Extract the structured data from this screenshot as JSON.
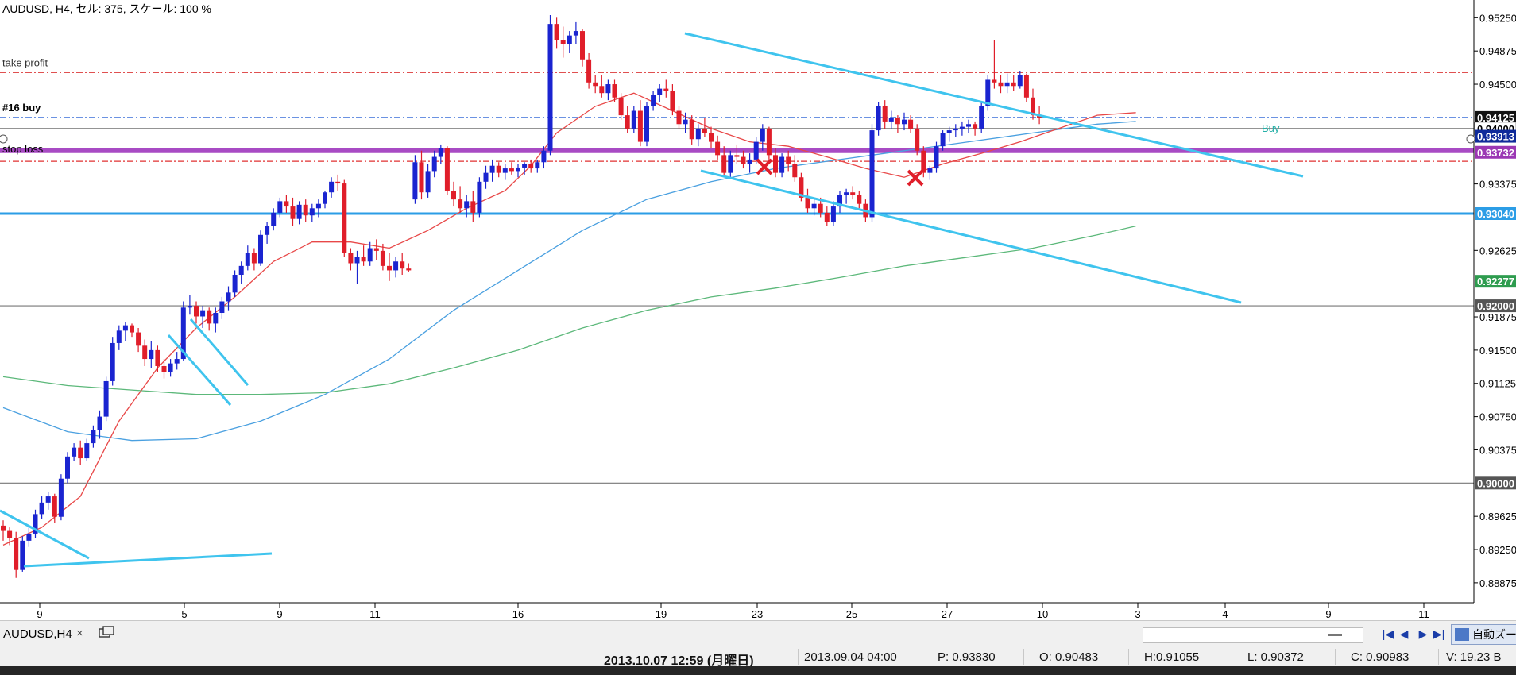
{
  "window": {
    "title": "AUDUSD, H4, セル: 375, スケール: 100 %"
  },
  "chart_data": {
    "type": "candlestick",
    "symbol": "AUDUSD",
    "timeframe": "H4",
    "y_ticks": [
      "0.95250",
      "0.94875",
      "0.94500",
      "0.93375",
      "0.92625",
      "0.91875",
      "0.91500",
      "0.91125",
      "0.90750",
      "0.90375",
      "0.89625",
      "0.89250",
      "0.88875"
    ],
    "x_ticks": [
      "9",
      "5",
      "9",
      "11",
      "16",
      "19",
      "23",
      "25",
      "27",
      "10",
      "3",
      "4",
      "9",
      "11"
    ],
    "ylim": [
      0.8865,
      0.9545
    ],
    "price_labels": [
      {
        "text": "0.94125",
        "bg": "#111111",
        "fg": "#ffffff"
      },
      {
        "text": "0.94000",
        "bg": "#ffffff",
        "fg": "#000000"
      },
      {
        "text": "0.93913",
        "bg": "#0f2a9a",
        "fg": "#ffffff"
      },
      {
        "text": "0.93732",
        "bg": "#9b37b4",
        "fg": "#ffffff"
      },
      {
        "text": "0.93040",
        "bg": "#2b9de6",
        "fg": "#ffffff"
      },
      {
        "text": "0.92277",
        "bg": "#2e9c4f",
        "fg": "#ffffff"
      },
      {
        "text": "0.92000",
        "bg": "#555555",
        "fg": "#ffffff"
      },
      {
        "text": "0.90000",
        "bg": "#555555",
        "fg": "#ffffff"
      }
    ],
    "order_labels": {
      "take_profit": "take profit",
      "buy": "#16 buy",
      "stop_loss": "stop loss",
      "buy_marker": "Buy"
    },
    "levels": {
      "take_profit": 0.9463,
      "entry": 0.94125,
      "line_94000": 0.94,
      "purple": 0.9375,
      "stop_loss": 0.9363,
      "line_93040": 0.9304,
      "line_92000": 0.92,
      "line_90000": 0.9
    },
    "candles": [
      [
        0.8952,
        0.8958,
        0.8935,
        0.8946
      ],
      [
        0.8946,
        0.895,
        0.893,
        0.8938
      ],
      [
        0.8938,
        0.8945,
        0.8893,
        0.8902
      ],
      [
        0.8902,
        0.894,
        0.89,
        0.8935
      ],
      [
        0.8935,
        0.895,
        0.8928,
        0.8943
      ],
      [
        0.8943,
        0.897,
        0.8938,
        0.8965
      ],
      [
        0.8965,
        0.8985,
        0.896,
        0.8978
      ],
      [
        0.8978,
        0.899,
        0.897,
        0.8985
      ],
      [
        0.8985,
        0.8988,
        0.8955,
        0.8962
      ],
      [
        0.8962,
        0.901,
        0.8958,
        0.9005
      ],
      [
        0.9005,
        0.9035,
        0.9,
        0.903
      ],
      [
        0.903,
        0.9045,
        0.9025,
        0.904
      ],
      [
        0.904,
        0.9048,
        0.902,
        0.9028
      ],
      [
        0.9028,
        0.905,
        0.9025,
        0.9045
      ],
      [
        0.9045,
        0.9065,
        0.904,
        0.906
      ],
      [
        0.906,
        0.9082,
        0.905,
        0.9075
      ],
      [
        0.9075,
        0.912,
        0.907,
        0.9115
      ],
      [
        0.9115,
        0.9165,
        0.911,
        0.9158
      ],
      [
        0.9158,
        0.9178,
        0.915,
        0.9172
      ],
      [
        0.9172,
        0.9182,
        0.916,
        0.9178
      ],
      [
        0.9178,
        0.918,
        0.9165,
        0.917
      ],
      [
        0.917,
        0.9175,
        0.9148,
        0.9155
      ],
      [
        0.9155,
        0.9162,
        0.9132,
        0.914
      ],
      [
        0.914,
        0.916,
        0.913,
        0.915
      ],
      [
        0.915,
        0.9155,
        0.9125,
        0.9132
      ],
      [
        0.9132,
        0.914,
        0.9118,
        0.9125
      ],
      [
        0.9125,
        0.914,
        0.912,
        0.9135
      ],
      [
        0.9135,
        0.9148,
        0.9128,
        0.914
      ],
      [
        0.914,
        0.9205,
        0.9138,
        0.9198
      ],
      [
        0.9198,
        0.9212,
        0.919,
        0.92
      ],
      [
        0.92,
        0.9205,
        0.918,
        0.9188
      ],
      [
        0.9188,
        0.92,
        0.9175,
        0.9195
      ],
      [
        0.9195,
        0.9198,
        0.9172,
        0.918
      ],
      [
        0.918,
        0.9198,
        0.917,
        0.9192
      ],
      [
        0.9192,
        0.921,
        0.9185,
        0.9205
      ],
      [
        0.9205,
        0.9222,
        0.9195,
        0.9215
      ],
      [
        0.9215,
        0.924,
        0.921,
        0.9235
      ],
      [
        0.9235,
        0.925,
        0.9225,
        0.9245
      ],
      [
        0.9245,
        0.9268,
        0.924,
        0.926
      ],
      [
        0.926,
        0.9265,
        0.924,
        0.9248
      ],
      [
        0.9248,
        0.9285,
        0.9245,
        0.928
      ],
      [
        0.928,
        0.9295,
        0.927,
        0.929
      ],
      [
        0.929,
        0.931,
        0.9285,
        0.9305
      ],
      [
        0.9305,
        0.9322,
        0.93,
        0.9318
      ],
      [
        0.9318,
        0.9325,
        0.9305,
        0.9312
      ],
      [
        0.9312,
        0.9322,
        0.929,
        0.9298
      ],
      [
        0.9298,
        0.9318,
        0.9292,
        0.9314
      ],
      [
        0.9314,
        0.932,
        0.9295,
        0.9302
      ],
      [
        0.9302,
        0.9315,
        0.9295,
        0.931
      ],
      [
        0.931,
        0.932,
        0.93,
        0.9315
      ],
      [
        0.9315,
        0.933,
        0.931,
        0.9328
      ],
      [
        0.9328,
        0.9345,
        0.9322,
        0.934
      ],
      [
        0.934,
        0.9348,
        0.933,
        0.9338
      ],
      [
        0.9338,
        0.9342,
        0.9255,
        0.926
      ],
      [
        0.926,
        0.9265,
        0.924,
        0.9248
      ],
      [
        0.9248,
        0.9262,
        0.9225,
        0.9255
      ],
      [
        0.9255,
        0.9268,
        0.9245,
        0.925
      ],
      [
        0.925,
        0.9272,
        0.9245,
        0.9265
      ],
      [
        0.9265,
        0.9275,
        0.9252,
        0.9262
      ],
      [
        0.9262,
        0.927,
        0.924,
        0.9245
      ],
      [
        0.9245,
        0.926,
        0.9228,
        0.924
      ],
      [
        0.924,
        0.9255,
        0.9232,
        0.925
      ],
      [
        0.925,
        0.926,
        0.9235,
        0.9242
      ],
      [
        0.9242,
        0.9248,
        0.9238,
        0.924
      ],
      [
        0.932,
        0.937,
        0.9315,
        0.9362
      ],
      [
        0.9362,
        0.9375,
        0.932,
        0.9328
      ],
      [
        0.9328,
        0.936,
        0.9322,
        0.9352
      ],
      [
        0.9352,
        0.9375,
        0.9345,
        0.9368
      ],
      [
        0.9368,
        0.9382,
        0.936,
        0.9378
      ],
      [
        0.9378,
        0.938,
        0.9325,
        0.933
      ],
      [
        0.933,
        0.934,
        0.9312,
        0.932
      ],
      [
        0.932,
        0.9335,
        0.9305,
        0.931
      ],
      [
        0.931,
        0.9325,
        0.93,
        0.9318
      ],
      [
        0.9318,
        0.933,
        0.9295,
        0.9305
      ],
      [
        0.9305,
        0.9345,
        0.93,
        0.934
      ],
      [
        0.934,
        0.9358,
        0.9332,
        0.935
      ],
      [
        0.935,
        0.9365,
        0.934,
        0.9358
      ],
      [
        0.9358,
        0.9362,
        0.9345,
        0.935
      ],
      [
        0.935,
        0.936,
        0.9342,
        0.9355
      ],
      [
        0.9355,
        0.9362,
        0.9348,
        0.9352
      ],
      [
        0.9352,
        0.936,
        0.9345,
        0.9356
      ],
      [
        0.9356,
        0.9362,
        0.9348,
        0.936
      ],
      [
        0.936,
        0.9365,
        0.935,
        0.9355
      ],
      [
        0.9355,
        0.9365,
        0.935,
        0.9362
      ],
      [
        0.9362,
        0.938,
        0.9355,
        0.9375
      ],
      [
        0.9375,
        0.9528,
        0.937,
        0.9518
      ],
      [
        0.9518,
        0.9525,
        0.949,
        0.95
      ],
      [
        0.95,
        0.9515,
        0.948,
        0.9495
      ],
      [
        0.9495,
        0.951,
        0.9485,
        0.9505
      ],
      [
        0.9505,
        0.952,
        0.9495,
        0.951
      ],
      [
        0.951,
        0.9512,
        0.947,
        0.9478
      ],
      [
        0.9478,
        0.9485,
        0.9445,
        0.9452
      ],
      [
        0.9452,
        0.946,
        0.944,
        0.9448
      ],
      [
        0.9448,
        0.946,
        0.9435,
        0.944
      ],
      [
        0.944,
        0.9455,
        0.9432,
        0.945
      ],
      [
        0.945,
        0.9455,
        0.943,
        0.9435
      ],
      [
        0.9435,
        0.944,
        0.941,
        0.9415
      ],
      [
        0.9415,
        0.9425,
        0.9395,
        0.94
      ],
      [
        0.94,
        0.9425,
        0.9395,
        0.942
      ],
      [
        0.942,
        0.9432,
        0.938,
        0.9385
      ],
      [
        0.9385,
        0.943,
        0.938,
        0.9425
      ],
      [
        0.9425,
        0.9442,
        0.942,
        0.9438
      ],
      [
        0.9438,
        0.945,
        0.943,
        0.9445
      ],
      [
        0.9445,
        0.9455,
        0.9435,
        0.9442
      ],
      [
        0.9442,
        0.945,
        0.9415,
        0.942
      ],
      [
        0.942,
        0.9425,
        0.94,
        0.9405
      ],
      [
        0.9405,
        0.9418,
        0.9395,
        0.941
      ],
      [
        0.941,
        0.9415,
        0.9382,
        0.9388
      ],
      [
        0.9388,
        0.9405,
        0.938,
        0.94
      ],
      [
        0.94,
        0.9412,
        0.939,
        0.9395
      ],
      [
        0.9395,
        0.9402,
        0.9378,
        0.9385
      ],
      [
        0.9385,
        0.9392,
        0.9365,
        0.937
      ],
      [
        0.937,
        0.938,
        0.9345,
        0.935
      ],
      [
        0.935,
        0.9375,
        0.9345,
        0.937
      ],
      [
        0.937,
        0.9382,
        0.936,
        0.9368
      ],
      [
        0.9368,
        0.9375,
        0.9355,
        0.936
      ],
      [
        0.936,
        0.9372,
        0.935,
        0.9365
      ],
      [
        0.9365,
        0.939,
        0.936,
        0.9385
      ],
      [
        0.9385,
        0.9405,
        0.9375,
        0.94
      ],
      [
        0.94,
        0.9402,
        0.9365,
        0.937
      ],
      [
        0.937,
        0.9378,
        0.9345,
        0.935
      ],
      [
        0.935,
        0.9372,
        0.9345,
        0.9368
      ],
      [
        0.9368,
        0.9375,
        0.9352,
        0.936
      ],
      [
        0.936,
        0.937,
        0.934,
        0.9345
      ],
      [
        0.9345,
        0.935,
        0.9318,
        0.9322
      ],
      [
        0.9322,
        0.9332,
        0.9305,
        0.931
      ],
      [
        0.931,
        0.9322,
        0.9302,
        0.9315
      ],
      [
        0.9315,
        0.9322,
        0.93,
        0.9305
      ],
      [
        0.9305,
        0.9312,
        0.929,
        0.9295
      ],
      [
        0.9295,
        0.9318,
        0.929,
        0.9312
      ],
      [
        0.9312,
        0.933,
        0.9305,
        0.9325
      ],
      [
        0.9325,
        0.9332,
        0.9315,
        0.9328
      ],
      [
        0.9328,
        0.9335,
        0.932,
        0.9325
      ],
      [
        0.9325,
        0.933,
        0.931,
        0.9315
      ],
      [
        0.9315,
        0.932,
        0.9295,
        0.93
      ],
      [
        0.93,
        0.9405,
        0.9295,
        0.9398
      ],
      [
        0.9398,
        0.943,
        0.9392,
        0.9425
      ],
      [
        0.9425,
        0.9432,
        0.94,
        0.9408
      ],
      [
        0.9408,
        0.942,
        0.94,
        0.9412
      ],
      [
        0.9412,
        0.9415,
        0.9395,
        0.9405
      ],
      [
        0.9405,
        0.9418,
        0.9398,
        0.941
      ],
      [
        0.941,
        0.9415,
        0.9395,
        0.94
      ],
      [
        0.94,
        0.9405,
        0.937,
        0.9375
      ],
      [
        0.9375,
        0.938,
        0.9345,
        0.935
      ],
      [
        0.935,
        0.9358,
        0.9342,
        0.9355
      ],
      [
        0.9355,
        0.9385,
        0.935,
        0.938
      ],
      [
        0.938,
        0.9398,
        0.9375,
        0.9395
      ],
      [
        0.9395,
        0.9402,
        0.9385,
        0.9398
      ],
      [
        0.9398,
        0.9405,
        0.939,
        0.94
      ],
      [
        0.94,
        0.9408,
        0.9392,
        0.9402
      ],
      [
        0.9402,
        0.941,
        0.9395,
        0.9405
      ],
      [
        0.9405,
        0.9408,
        0.9392,
        0.94
      ],
      [
        0.94,
        0.943,
        0.9395,
        0.9425
      ],
      [
        0.9425,
        0.946,
        0.942,
        0.9455
      ],
      [
        0.9455,
        0.95,
        0.9445,
        0.9452
      ],
      [
        0.9452,
        0.946,
        0.944,
        0.9448
      ],
      [
        0.9448,
        0.9462,
        0.944,
        0.9452
      ],
      [
        0.9452,
        0.946,
        0.9442,
        0.9448
      ],
      [
        0.9448,
        0.9465,
        0.9445,
        0.946
      ],
      [
        0.946,
        0.9462,
        0.943,
        0.9435
      ],
      [
        0.9435,
        0.9445,
        0.941,
        0.9415
      ],
      [
        0.9415,
        0.9425,
        0.9405,
        0.9412
      ]
    ],
    "ma_fast": [
      [
        0,
        0.893
      ],
      [
        6,
        0.895
      ],
      [
        12,
        0.8985
      ],
      [
        18,
        0.907
      ],
      [
        24,
        0.913
      ],
      [
        30,
        0.9175
      ],
      [
        36,
        0.921
      ],
      [
        42,
        0.925
      ],
      [
        48,
        0.9272
      ],
      [
        54,
        0.9272
      ],
      [
        60,
        0.9265
      ],
      [
        66,
        0.9285
      ],
      [
        72,
        0.931
      ],
      [
        78,
        0.933
      ],
      [
        82,
        0.9358
      ],
      [
        86,
        0.9395
      ],
      [
        92,
        0.9425
      ],
      [
        98,
        0.944
      ],
      [
        104,
        0.942
      ],
      [
        110,
        0.94
      ],
      [
        116,
        0.9385
      ],
      [
        122,
        0.938
      ],
      [
        128,
        0.9368
      ],
      [
        134,
        0.9355
      ],
      [
        140,
        0.9345
      ],
      [
        146,
        0.936
      ],
      [
        152,
        0.9372
      ],
      [
        158,
        0.9385
      ],
      [
        164,
        0.94
      ],
      [
        170,
        0.9415
      ],
      [
        176,
        0.9418
      ]
    ],
    "ma_mid": [
      [
        0,
        0.9085
      ],
      [
        10,
        0.9058
      ],
      [
        20,
        0.9048
      ],
      [
        30,
        0.905
      ],
      [
        40,
        0.907
      ],
      [
        50,
        0.91
      ],
      [
        60,
        0.914
      ],
      [
        70,
        0.9195
      ],
      [
        80,
        0.924
      ],
      [
        90,
        0.9285
      ],
      [
        100,
        0.932
      ],
      [
        110,
        0.934
      ],
      [
        120,
        0.9355
      ],
      [
        130,
        0.9365
      ],
      [
        140,
        0.9375
      ],
      [
        150,
        0.9385
      ],
      [
        160,
        0.9395
      ],
      [
        170,
        0.9405
      ],
      [
        176,
        0.9408
      ]
    ],
    "ma_slow": [
      [
        0,
        0.912
      ],
      [
        10,
        0.911
      ],
      [
        20,
        0.9105
      ],
      [
        30,
        0.91
      ],
      [
        40,
        0.91
      ],
      [
        50,
        0.9102
      ],
      [
        60,
        0.9112
      ],
      [
        70,
        0.913
      ],
      [
        80,
        0.915
      ],
      [
        90,
        0.9175
      ],
      [
        100,
        0.9195
      ],
      [
        110,
        0.921
      ],
      [
        120,
        0.922
      ],
      [
        130,
        0.9232
      ],
      [
        140,
        0.9245
      ],
      [
        150,
        0.9255
      ],
      [
        160,
        0.9265
      ],
      [
        170,
        0.928
      ],
      [
        176,
        0.929
      ]
    ]
  },
  "tab": {
    "label": "AUDUSD,H4",
    "close": "×"
  },
  "toolbar": {
    "zoom_label": "自動ズーム",
    "scroll_first": "|◀",
    "scroll_prev": "◀",
    "scroll_next": "▶",
    "scroll_last": "▶|"
  },
  "status": {
    "current_time": "2013.10.07 12:59 (月曜日)",
    "bar_time": "2013.09.04 04:00",
    "price": "P: 0.93830",
    "open": "O: 0.90483",
    "high": "H:0.91055",
    "low": "L: 0.90372",
    "close": "C: 0.90983",
    "volume": "V: 19.23 B"
  }
}
